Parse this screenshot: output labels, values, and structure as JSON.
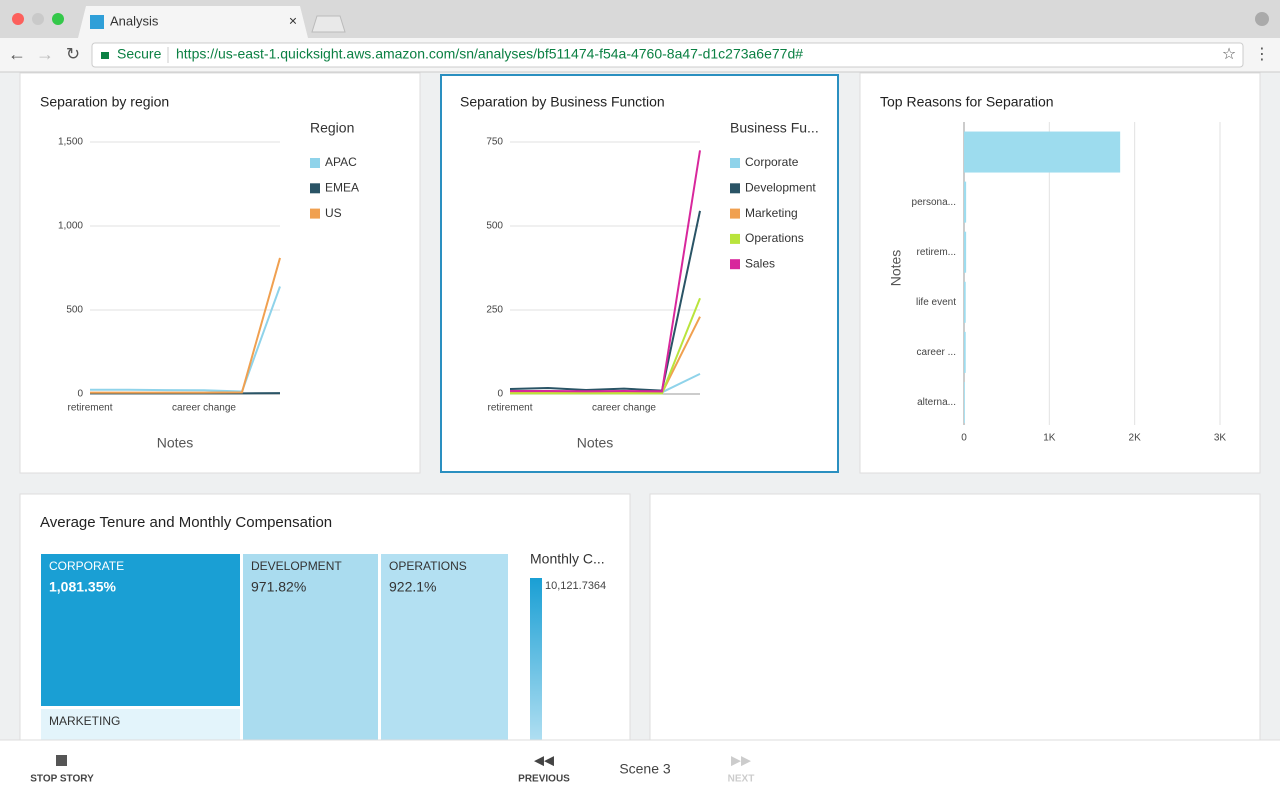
{
  "browser": {
    "tab_title": "Analysis",
    "secure_label": "Secure",
    "url": "https://us-east-1.quicksight.aws.amazon.com/sn/analyses/bf511474-f54a-4760-8a47-d1c273a6e77d#"
  },
  "chart_data": [
    {
      "type": "line",
      "title": "Separation by region",
      "x_label": "Notes",
      "legend_title": "Region",
      "categories": [
        "retirement",
        null,
        null,
        "career change",
        null,
        null
      ],
      "series": [
        {
          "name": "APAC",
          "color": "#8fd3ea",
          "values": [
            25,
            25,
            23,
            22,
            15,
            640
          ]
        },
        {
          "name": "EMEA",
          "color": "#2a5466",
          "values": [
            4,
            4,
            4,
            4,
            4,
            5
          ]
        },
        {
          "name": "US",
          "color": "#f0a050",
          "values": [
            8,
            8,
            8,
            8,
            10,
            810
          ]
        }
      ],
      "ylim": [
        0,
        1500
      ],
      "yticks": [
        0,
        500,
        {
          "value": 1000,
          "label": "1,000"
        },
        {
          "value": 1500,
          "label": "1,500"
        }
      ],
      "grid": true
    },
    {
      "type": "line",
      "title": "Separation by Business Function",
      "x_label": "Notes",
      "legend_title": "Business Fu...",
      "categories": [
        "retirement",
        null,
        null,
        "career change",
        null,
        null
      ],
      "series": [
        {
          "name": "Corporate",
          "color": "#8fd3ea",
          "values": [
            5,
            5,
            5,
            5,
            5,
            60
          ]
        },
        {
          "name": "Development",
          "color": "#2a5466",
          "values": [
            15,
            18,
            12,
            16,
            10,
            545
          ]
        },
        {
          "name": "Marketing",
          "color": "#f0a050",
          "values": [
            3,
            3,
            3,
            3,
            3,
            230
          ]
        },
        {
          "name": "Operations",
          "color": "#b9e43c",
          "values": [
            2,
            2,
            2,
            2,
            2,
            285
          ]
        },
        {
          "name": "Sales",
          "color": "#d8279c",
          "values": [
            9,
            9,
            8,
            9,
            8,
            725
          ]
        }
      ],
      "ylim": [
        0,
        750
      ],
      "yticks": [
        0,
        250,
        500,
        750
      ],
      "grid": true
    },
    {
      "type": "hbar",
      "title": "Top Reasons for Separation",
      "y_label": "Notes",
      "categories": [
        null,
        "persona...",
        "retirem...",
        "life event",
        "career ...",
        "alterna..."
      ],
      "values": [
        1830,
        25,
        25,
        20,
        20,
        10
      ],
      "color": "#9ddcee",
      "xlim": [
        0,
        3000
      ],
      "xticks": [
        0,
        {
          "value": 1000,
          "label": "1K"
        },
        {
          "value": 2000,
          "label": "2K"
        },
        {
          "value": 3000,
          "label": "3K"
        }
      ],
      "grid": true
    }
  ],
  "treemap": {
    "title": "Average Tenure and Monthly Compensation",
    "tiles": [
      {
        "label": "CORPORATE",
        "value_label": "1,081.35%"
      },
      {
        "label": "DEVELOPMENT",
        "value_label": "971.82%"
      },
      {
        "label": "OPERATIONS",
        "value_label": "922.1%"
      },
      {
        "label": "MARKETING"
      }
    ],
    "legend_title": "Monthly C...",
    "legend_max": "10,121.7364"
  },
  "story_bar": {
    "stop": "STOP STORY",
    "previous": "PREVIOUS",
    "scene": "Scene 3",
    "next": "NEXT"
  }
}
